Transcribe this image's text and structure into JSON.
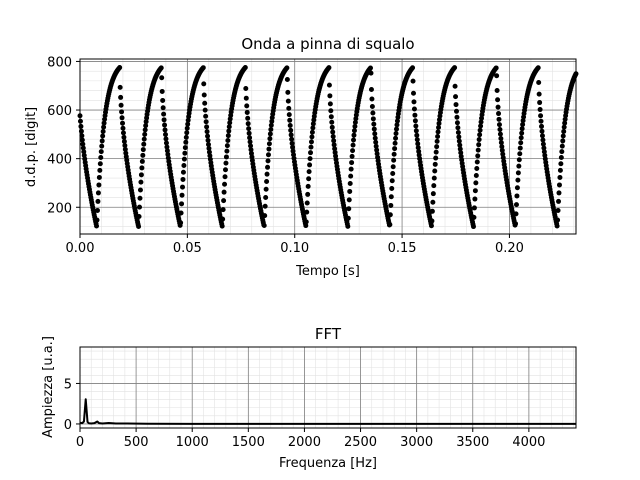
{
  "chart_data": [
    {
      "type": "scatter",
      "title": "Onda  a pinna di squalo",
      "xlabel": "Tempo [s]",
      "ylabel": "d.d.p. [digit]",
      "xlim": [
        0,
        0.231
      ],
      "ylim": [
        90,
        810
      ],
      "x_ticks": [
        "0.00",
        "0.05",
        "0.10",
        "0.15",
        "0.20"
      ],
      "y_ticks": [
        "200",
        "400",
        "600",
        "800"
      ],
      "grid": true,
      "signal": {
        "kind": "shark-fin periodic wave",
        "period_s": 0.0195,
        "first_peak_s": 0.0185,
        "min": 120,
        "max": 775,
        "sample_spacing_s": 0.00022
      }
    },
    {
      "type": "line",
      "title": "FFT",
      "xlabel": "Frequenza [Hz]",
      "ylabel": "Ampiezza [u.a.]",
      "xlim": [
        0,
        4420
      ],
      "ylim": [
        -0.5,
        9.5
      ],
      "x_ticks": [
        "0",
        "500",
        "1000",
        "1500",
        "2000",
        "2500",
        "3000",
        "3500",
        "4000"
      ],
      "y_ticks": [
        "0",
        "5"
      ],
      "grid": true,
      "x": [
        0,
        20,
        35,
        51,
        67,
        80,
        100,
        128,
        154,
        170,
        200,
        256,
        320,
        400,
        600,
        1000,
        2000,
        3000,
        4000,
        4420
      ],
      "values": [
        0.15,
        0.1,
        0.3,
        3.05,
        0.25,
        0.08,
        0.05,
        0.1,
        0.3,
        0.1,
        0.05,
        0.12,
        0.05,
        0.06,
        0.02,
        0.01,
        0.01,
        0.01,
        0.01,
        0.01
      ]
    }
  ]
}
